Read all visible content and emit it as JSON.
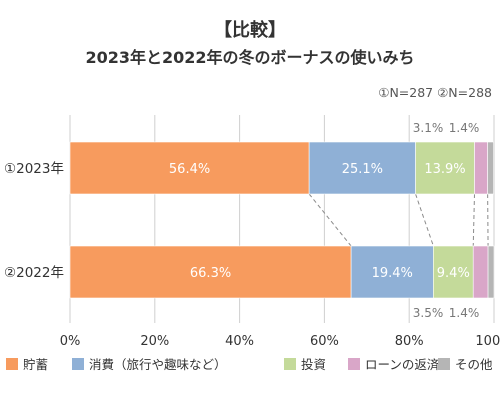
{
  "chart_data": {
    "type": "bar",
    "orientation": "horizontal",
    "stacked": true,
    "title": "【比較】",
    "subtitle": "2023年と2022年の冬のボーナスの使いみち",
    "note": "①N=287 ②N=288",
    "categories": [
      "①2023年",
      "②2022年"
    ],
    "series": [
      {
        "name": "貯蓄",
        "color": "#f79b5e",
        "values": [
          56.4,
          66.3
        ],
        "labels": [
          "56.4%",
          "66.3%"
        ]
      },
      {
        "name": "消費（旅行や趣味など）",
        "color": "#8fb0d6",
        "values": [
          25.1,
          19.4
        ],
        "labels": [
          "25.1%",
          "19.4%"
        ]
      },
      {
        "name": "投資",
        "color": "#c4da9a",
        "values": [
          13.9,
          9.4
        ],
        "labels": [
          "13.9%",
          "9.4%"
        ]
      },
      {
        "name": "ローンの返済",
        "color": "#d9a6c8",
        "values": [
          3.1,
          3.5
        ],
        "labels": [
          "3.1%",
          "3.5%"
        ]
      },
      {
        "name": "その他",
        "color": "#b5b5b5",
        "values": [
          1.4,
          1.4
        ],
        "labels": [
          "1.4%",
          "1.4%"
        ]
      }
    ],
    "xlim": [
      0,
      100
    ],
    "xticks": [
      "0%",
      "20%",
      "40%",
      "60%",
      "80%",
      "100%"
    ],
    "grid": true,
    "legend_position": "bottom"
  }
}
